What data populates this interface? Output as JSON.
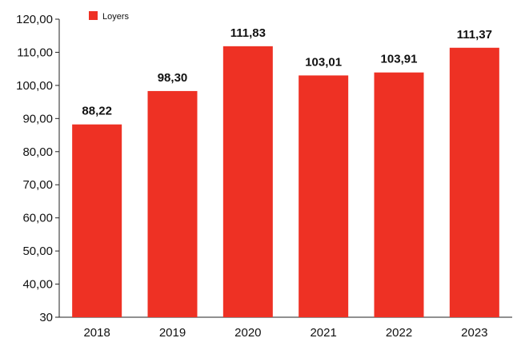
{
  "chart_data": {
    "type": "bar",
    "categories": [
      "2018",
      "2019",
      "2020",
      "2021",
      "2022",
      "2023"
    ],
    "series": [
      {
        "name": "Loyers",
        "values": [
          88.22,
          98.3,
          111.83,
          103.01,
          103.91,
          111.37
        ],
        "value_labels": [
          "88,22",
          "98,30",
          "111,83",
          "103,01",
          "103,91",
          "111,37"
        ],
        "color": "#ee3124"
      }
    ],
    "ylim": [
      30,
      120
    ],
    "yticks": [
      30,
      40,
      50,
      60,
      70,
      80,
      90,
      100,
      110,
      120
    ],
    "ytick_labels": [
      "30",
      "40,00",
      "50,00",
      "60,00",
      "70,00",
      "80,00",
      "90,00",
      "100,00",
      "110,00",
      "120,00"
    ],
    "grid": false,
    "legend": {
      "position": "top-left",
      "label": "Loyers"
    },
    "title": "",
    "xlabel": "",
    "ylabel": ""
  }
}
